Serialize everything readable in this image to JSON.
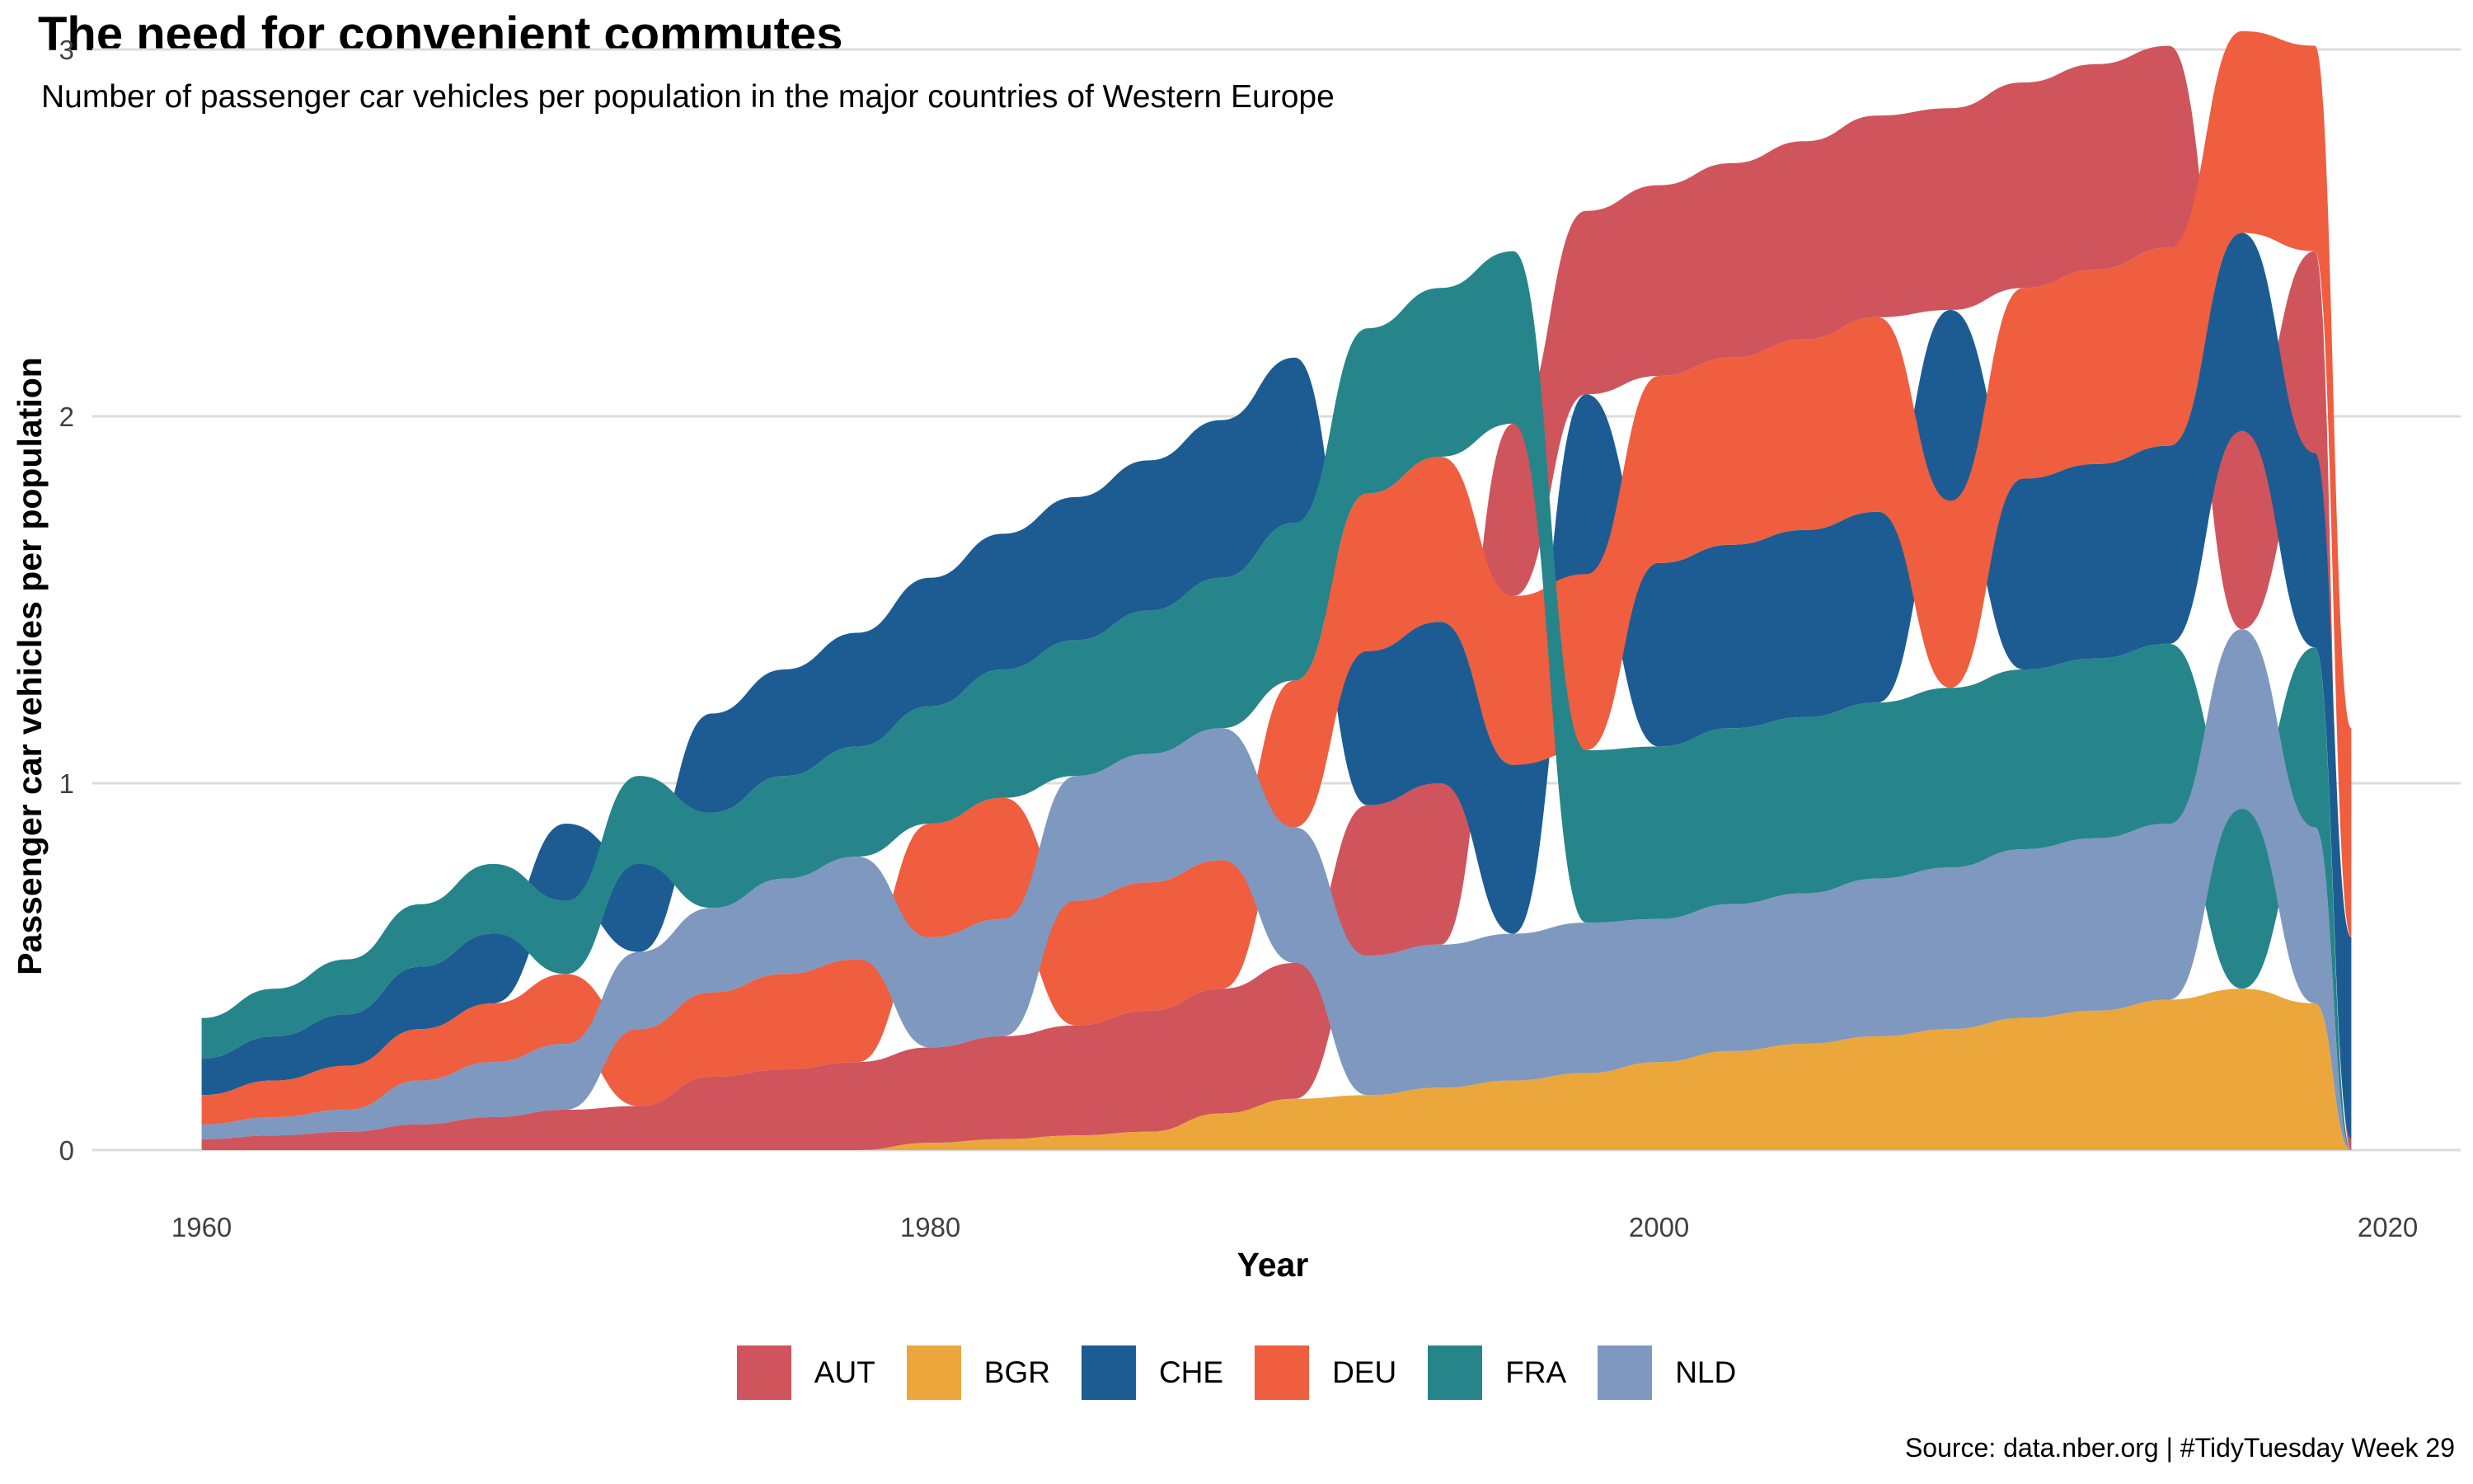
{
  "title": "The need for convenient commutes",
  "subtitle": "Number of passenger car vehicles per population in the major countries of Western Europe",
  "caption": "Source: data.nber.org | #TidyTuesday Week 29",
  "chart_data": {
    "type": "area",
    "stacking": "ranked stream (series re-ordered each year by value)",
    "xlabel": "Year",
    "ylabel": "Passenger car vehicles per population",
    "xlim": [
      1957,
      2022
    ],
    "ylim": [
      0,
      3
    ],
    "x_ticks": [
      1960,
      1980,
      2000,
      2020
    ],
    "y_ticks": [
      0,
      1,
      2,
      3
    ],
    "grid": "horizontal major",
    "legend_position": "bottom",
    "series": [
      {
        "name": "AUT",
        "color": "#D0545C",
        "x": [
          1960,
          1962,
          1964,
          1966,
          1968,
          1970,
          1972,
          1974,
          1976,
          1978,
          1980,
          1982,
          1984,
          1986,
          1988,
          1990,
          1992,
          1994,
          1996,
          1998,
          2000,
          2002,
          2004,
          2006,
          2008,
          2010,
          2012,
          2014,
          2016,
          2018,
          2019
        ],
        "values": [
          0.03,
          0.04,
          0.05,
          0.07,
          0.09,
          0.11,
          0.12,
          0.2,
          0.22,
          0.24,
          0.26,
          0.28,
          0.3,
          0.33,
          0.34,
          0.37,
          0.41,
          0.44,
          0.47,
          0.5,
          0.52,
          0.53,
          0.54,
          0.55,
          0.55,
          0.56,
          0.56,
          0.55,
          0.54,
          0.55,
          0.03
        ]
      },
      {
        "name": "BGR",
        "color": "#EBA73C",
        "x": [
          1960,
          1962,
          1964,
          1966,
          1968,
          1970,
          1972,
          1974,
          1976,
          1978,
          1980,
          1982,
          1984,
          1986,
          1988,
          1990,
          1992,
          1994,
          1996,
          1998,
          2000,
          2002,
          2004,
          2006,
          2008,
          2010,
          2012,
          2014,
          2016,
          2018,
          2019
        ],
        "values": [
          0,
          0,
          0,
          0,
          0,
          0,
          0,
          0,
          0,
          0,
          0.02,
          0.03,
          0.04,
          0.05,
          0.1,
          0.14,
          0.15,
          0.17,
          0.19,
          0.21,
          0.24,
          0.27,
          0.29,
          0.31,
          0.33,
          0.36,
          0.38,
          0.41,
          0.44,
          0.4,
          0
        ]
      },
      {
        "name": "CHE",
        "color": "#1C5C93",
        "x": [
          1960,
          1962,
          1964,
          1966,
          1968,
          1970,
          1972,
          1974,
          1976,
          1978,
          1980,
          1982,
          1984,
          1986,
          1988,
          1990,
          1992,
          1994,
          1996,
          1998,
          2000,
          2002,
          2004,
          2006,
          2008,
          2010,
          2012,
          2014,
          2016,
          2018,
          2019
        ],
        "values": [
          0.1,
          0.12,
          0.14,
          0.17,
          0.19,
          0.21,
          0.24,
          0.27,
          0.29,
          0.31,
          0.35,
          0.37,
          0.39,
          0.41,
          0.43,
          0.45,
          0.42,
          0.44,
          0.46,
          0.49,
          0.5,
          0.5,
          0.51,
          0.52,
          0.52,
          0.52,
          0.53,
          0.54,
          0.54,
          0.53,
          0.55
        ]
      },
      {
        "name": "DEU",
        "color": "#EE5E3F",
        "x": [
          1960,
          1962,
          1964,
          1966,
          1968,
          1970,
          1972,
          1974,
          1976,
          1978,
          1980,
          1982,
          1984,
          1986,
          1988,
          1990,
          1992,
          1994,
          1996,
          1998,
          2000,
          2002,
          2004,
          2006,
          2008,
          2010,
          2012,
          2014,
          2016,
          2018,
          2019
        ],
        "values": [
          0.08,
          0.1,
          0.12,
          0.14,
          0.16,
          0.19,
          0.21,
          0.23,
          0.26,
          0.28,
          0.31,
          0.33,
          0.34,
          0.35,
          0.35,
          0.4,
          0.43,
          0.45,
          0.46,
          0.48,
          0.51,
          0.51,
          0.52,
          0.53,
          0.51,
          0.52,
          0.53,
          0.54,
          0.55,
          0.56,
          0.57
        ]
      },
      {
        "name": "FRA",
        "color": "#26858A",
        "x": [
          1960,
          1962,
          1964,
          1966,
          1968,
          1970,
          1972,
          1974,
          1976,
          1978,
          1980,
          1982,
          1984,
          1986,
          1988,
          1990,
          1992,
          1994,
          1996,
          1998,
          2000,
          2002,
          2004,
          2006,
          2008,
          2010,
          2012,
          2014,
          2016,
          2018,
          2019
        ],
        "values": [
          0.11,
          0.13,
          0.15,
          0.17,
          0.19,
          0.2,
          0.24,
          0.26,
          0.28,
          0.3,
          0.32,
          0.35,
          0.37,
          0.39,
          0.41,
          0.43,
          0.45,
          0.46,
          0.47,
          0.47,
          0.47,
          0.48,
          0.48,
          0.48,
          0.49,
          0.49,
          0.49,
          0.49,
          0.49,
          0.49,
          0
        ]
      },
      {
        "name": "NLD",
        "color": "#7E98BF",
        "x": [
          1960,
          1962,
          1964,
          1966,
          1968,
          1970,
          1972,
          1974,
          1976,
          1978,
          1980,
          1982,
          1984,
          1986,
          1988,
          1990,
          1992,
          1994,
          1996,
          1998,
          2000,
          2002,
          2004,
          2006,
          2008,
          2010,
          2012,
          2014,
          2016,
          2018,
          2019
        ],
        "values": [
          0.04,
          0.05,
          0.06,
          0.12,
          0.15,
          0.18,
          0.21,
          0.23,
          0.26,
          0.28,
          0.3,
          0.32,
          0.34,
          0.35,
          0.36,
          0.37,
          0.38,
          0.39,
          0.4,
          0.41,
          0.39,
          0.4,
          0.41,
          0.43,
          0.44,
          0.46,
          0.47,
          0.48,
          0.49,
          0.48,
          0
        ]
      }
    ]
  }
}
